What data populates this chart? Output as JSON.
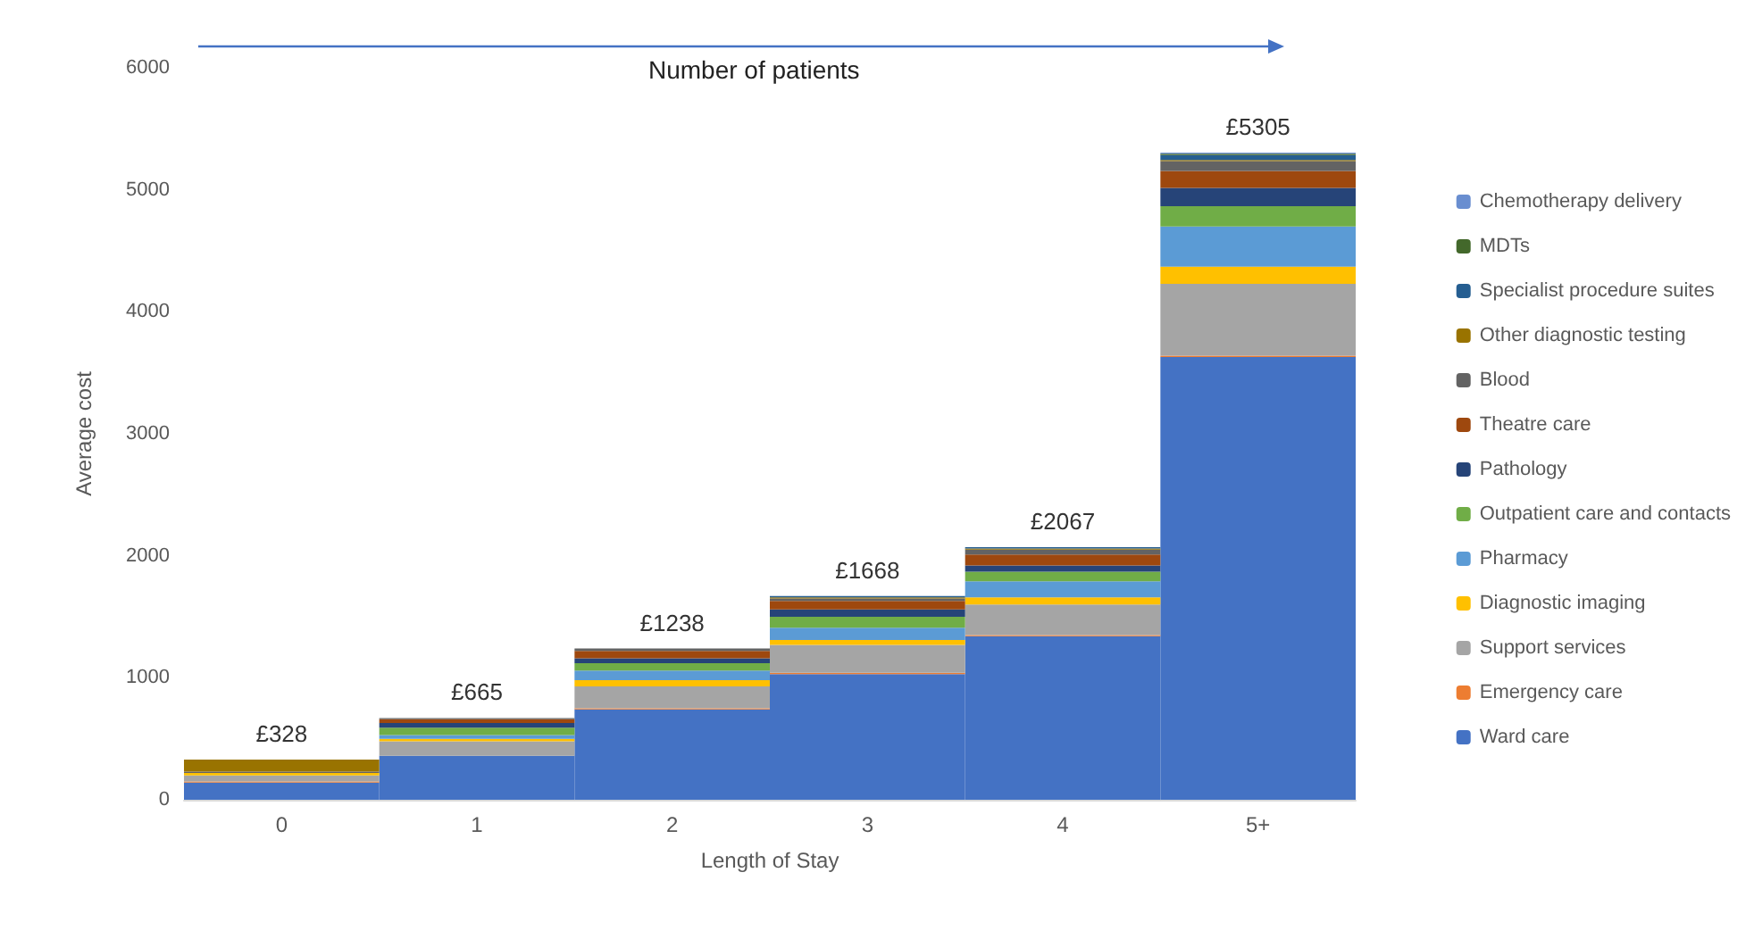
{
  "chart_data": {
    "type": "bar",
    "stacked": true,
    "xlabel": "Length of Stay",
    "ylabel": "Average cost",
    "categories": [
      "0",
      "1",
      "2",
      "3",
      "4",
      "5+"
    ],
    "series": [
      {
        "name": "Ward care",
        "color": "#4472c4",
        "values": [
          140,
          360,
          740,
          1030,
          1340,
          3630
        ]
      },
      {
        "name": "Emergency care",
        "color": "#ed7d31",
        "values": [
          10,
          null,
          10,
          10,
          10,
          10
        ]
      },
      {
        "name": "Support services",
        "color": "#a5a5a5",
        "values": [
          50,
          120,
          180,
          230,
          250,
          590
        ]
      },
      {
        "name": "Diagnostic imaging",
        "color": "#ffc000",
        "values": [
          20,
          20,
          50,
          40,
          60,
          140
        ]
      },
      {
        "name": "Pharmacy",
        "color": "#5b9bd5",
        "values": [
          null,
          30,
          80,
          100,
          130,
          330
        ]
      },
      {
        "name": "Outpatient care and contacts",
        "color": "#70ad47",
        "values": [
          null,
          60,
          60,
          90,
          80,
          165
        ]
      },
      {
        "name": "Pathology",
        "color": "#264478",
        "values": [
          null,
          40,
          40,
          60,
          50,
          150
        ]
      },
      {
        "name": "Theatre care",
        "color": "#9e480e",
        "values": [
          null,
          30,
          60,
          70,
          90,
          140
        ]
      },
      {
        "name": "Blood",
        "color": "#636363",
        "values": [
          10,
          10,
          20,
          20,
          40,
          80
        ]
      },
      {
        "name": "Other diagnostic testing",
        "color": "#997300",
        "values": [
          100,
          null,
          null,
          10,
          10,
          10
        ]
      },
      {
        "name": "Specialist procedure suites",
        "color": "#255e91",
        "values": [
          null,
          null,
          null,
          10,
          10,
          40
        ]
      },
      {
        "name": "MDTs",
        "color": "#43682b",
        "values": [
          null,
          null,
          null,
          null,
          null,
          10
        ]
      },
      {
        "name": "Chemotherapy delivery",
        "color": "#698ed0",
        "values": [
          null,
          null,
          null,
          null,
          null,
          10
        ]
      }
    ],
    "totals": [
      "£328",
      "£665",
      "£1238",
      "£1668",
      "£2067",
      "£5305"
    ],
    "ylim": [
      0,
      6000
    ],
    "yticks": [
      0,
      1000,
      2000,
      3000,
      4000,
      5000,
      6000
    ],
    "annotations": [
      "Number of patients"
    ],
    "grid": false,
    "legend": "right"
  }
}
